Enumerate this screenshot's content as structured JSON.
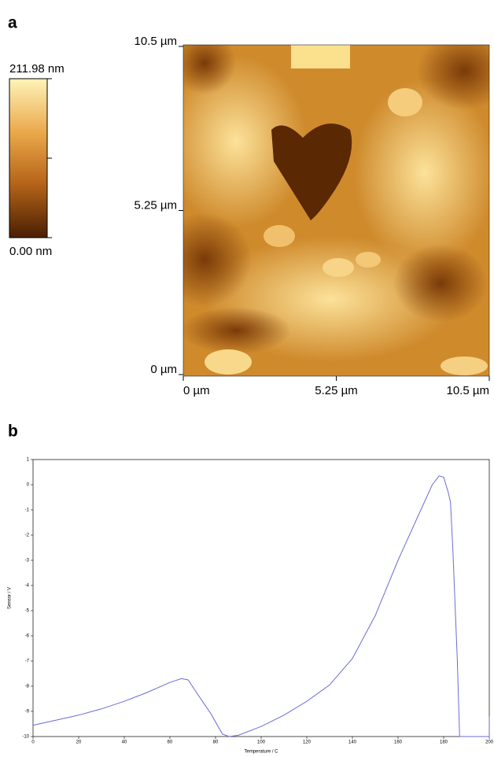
{
  "chart_data": [
    {
      "type": "image",
      "label": "a",
      "clim": [
        0,
        211.98
      ],
      "cticks": [
        {
          "value": 0,
          "label": "0.00 nm"
        },
        {
          "value": 211.98,
          "label": "211.98 nm"
        }
      ],
      "xlim": [
        0,
        10.5
      ],
      "ylim": [
        0,
        10.5
      ],
      "xticks": [
        {
          "value": 0,
          "label": "0 µm"
        },
        {
          "value": 5.25,
          "label": "5.25 µm"
        },
        {
          "value": 10.5,
          "label": "10.5 µm"
        }
      ],
      "yticks": [
        {
          "value": 0,
          "label": "0 µm"
        },
        {
          "value": 5.25,
          "label": "5.25 µm"
        },
        {
          "value": 10.5,
          "label": "10.5 µm"
        }
      ]
    },
    {
      "type": "line",
      "label": "b",
      "x_label": "Temperature / C",
      "y_label": "Sensor / V",
      "xlim": [
        0,
        200
      ],
      "ylim": [
        -10,
        1
      ],
      "xticks": [
        0,
        20,
        40,
        60,
        80,
        100,
        120,
        140,
        160,
        180,
        200
      ],
      "yticks": [
        -10,
        -9,
        -8,
        -7,
        -6,
        -5,
        -4,
        -3,
        -2,
        -1,
        0,
        1
      ],
      "x": [
        0,
        10,
        20,
        30,
        40,
        50,
        60,
        65,
        68,
        72,
        78,
        83,
        86,
        90,
        100,
        110,
        120,
        130,
        140,
        150,
        160,
        170,
        175,
        178,
        180,
        182,
        183,
        184,
        186,
        187,
        195,
        200,
        200
      ],
      "series": [
        {
          "color": "#6b6bd6",
          "values": [
            -9.55,
            -9.35,
            -9.15,
            -8.9,
            -8.6,
            -8.25,
            -7.85,
            -7.7,
            -7.75,
            -8.3,
            -9.1,
            -9.9,
            -10,
            -9.95,
            -9.6,
            -9.15,
            -8.6,
            -7.95,
            -6.9,
            -5.2,
            -3.0,
            -1.0,
            0.0,
            0.35,
            0.3,
            -0.3,
            -0.7,
            -2.5,
            -7,
            -10,
            -10,
            -10,
            -9.2
          ]
        }
      ]
    }
  ]
}
